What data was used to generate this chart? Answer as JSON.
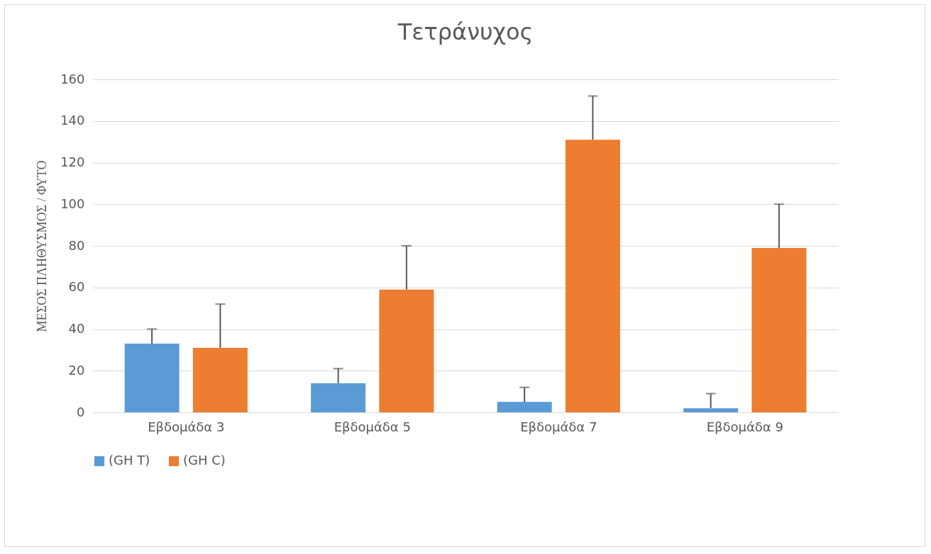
{
  "chart_data": {
    "type": "bar",
    "title": "Τετράνυχος",
    "ylabel": "ΜΕΣΟΣ ΠΛΗΘΥΣΜΟΣ / ΦΥΤΟ",
    "categories": [
      "Εβδομάδα 3",
      "Εβδομάδα 5",
      "Εβδομάδα 7",
      "Εβδομάδα 9"
    ],
    "series": [
      {
        "name": "(GH T)",
        "color": "#5b9bd5",
        "values": [
          33,
          14,
          5,
          2
        ],
        "errors": [
          [
            33,
            40
          ],
          [
            14,
            21
          ],
          [
            5,
            12
          ],
          [
            2,
            9
          ]
        ]
      },
      {
        "name": "(GH C)",
        "color": "#ed7d31",
        "values": [
          31,
          59,
          131,
          79
        ],
        "errors": [
          [
            31,
            52
          ],
          [
            59,
            80
          ],
          [
            131,
            152
          ],
          [
            79,
            100
          ]
        ]
      }
    ],
    "ylim": [
      0,
      160
    ],
    "yticks": [
      0,
      20,
      40,
      60,
      80,
      100,
      120,
      140,
      160
    ],
    "grid": "y",
    "legend": "bottom"
  }
}
